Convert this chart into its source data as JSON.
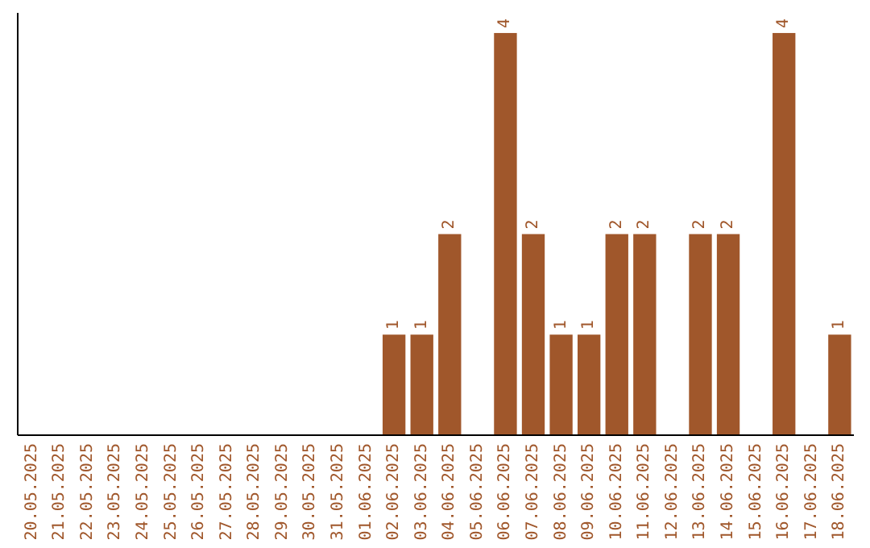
{
  "chart_data": {
    "type": "bar",
    "categories": [
      "20.05.2025",
      "21.05.2025",
      "22.05.2025",
      "23.05.2025",
      "24.05.2025",
      "25.05.2025",
      "26.05.2025",
      "27.05.2025",
      "28.05.2025",
      "29.05.2025",
      "30.05.2025",
      "31.05.2025",
      "01.06.2025",
      "02.06.2025",
      "03.06.2025",
      "04.06.2025",
      "05.06.2025",
      "06.06.2025",
      "07.06.2025",
      "08.06.2025",
      "09.06.2025",
      "10.06.2025",
      "11.06.2025",
      "12.06.2025",
      "13.06.2025",
      "14.06.2025",
      "15.06.2025",
      "16.06.2025",
      "17.06.2025",
      "18.06.2025"
    ],
    "values": [
      null,
      null,
      null,
      null,
      null,
      null,
      null,
      null,
      null,
      null,
      null,
      null,
      null,
      1,
      1,
      2,
      null,
      4,
      2,
      1,
      1,
      2,
      2,
      null,
      2,
      2,
      null,
      4,
      null,
      1
    ],
    "value_labels": [
      null,
      null,
      null,
      null,
      null,
      null,
      null,
      null,
      null,
      null,
      null,
      null,
      null,
      "1",
      "1",
      "2",
      null,
      "4",
      "2",
      "1",
      "1",
      "2",
      "2",
      null,
      "2",
      "2",
      null,
      "4",
      null,
      "1"
    ],
    "color": "#a0572b",
    "ylim": [
      0,
      4.2
    ],
    "tick_labels": "x"
  }
}
